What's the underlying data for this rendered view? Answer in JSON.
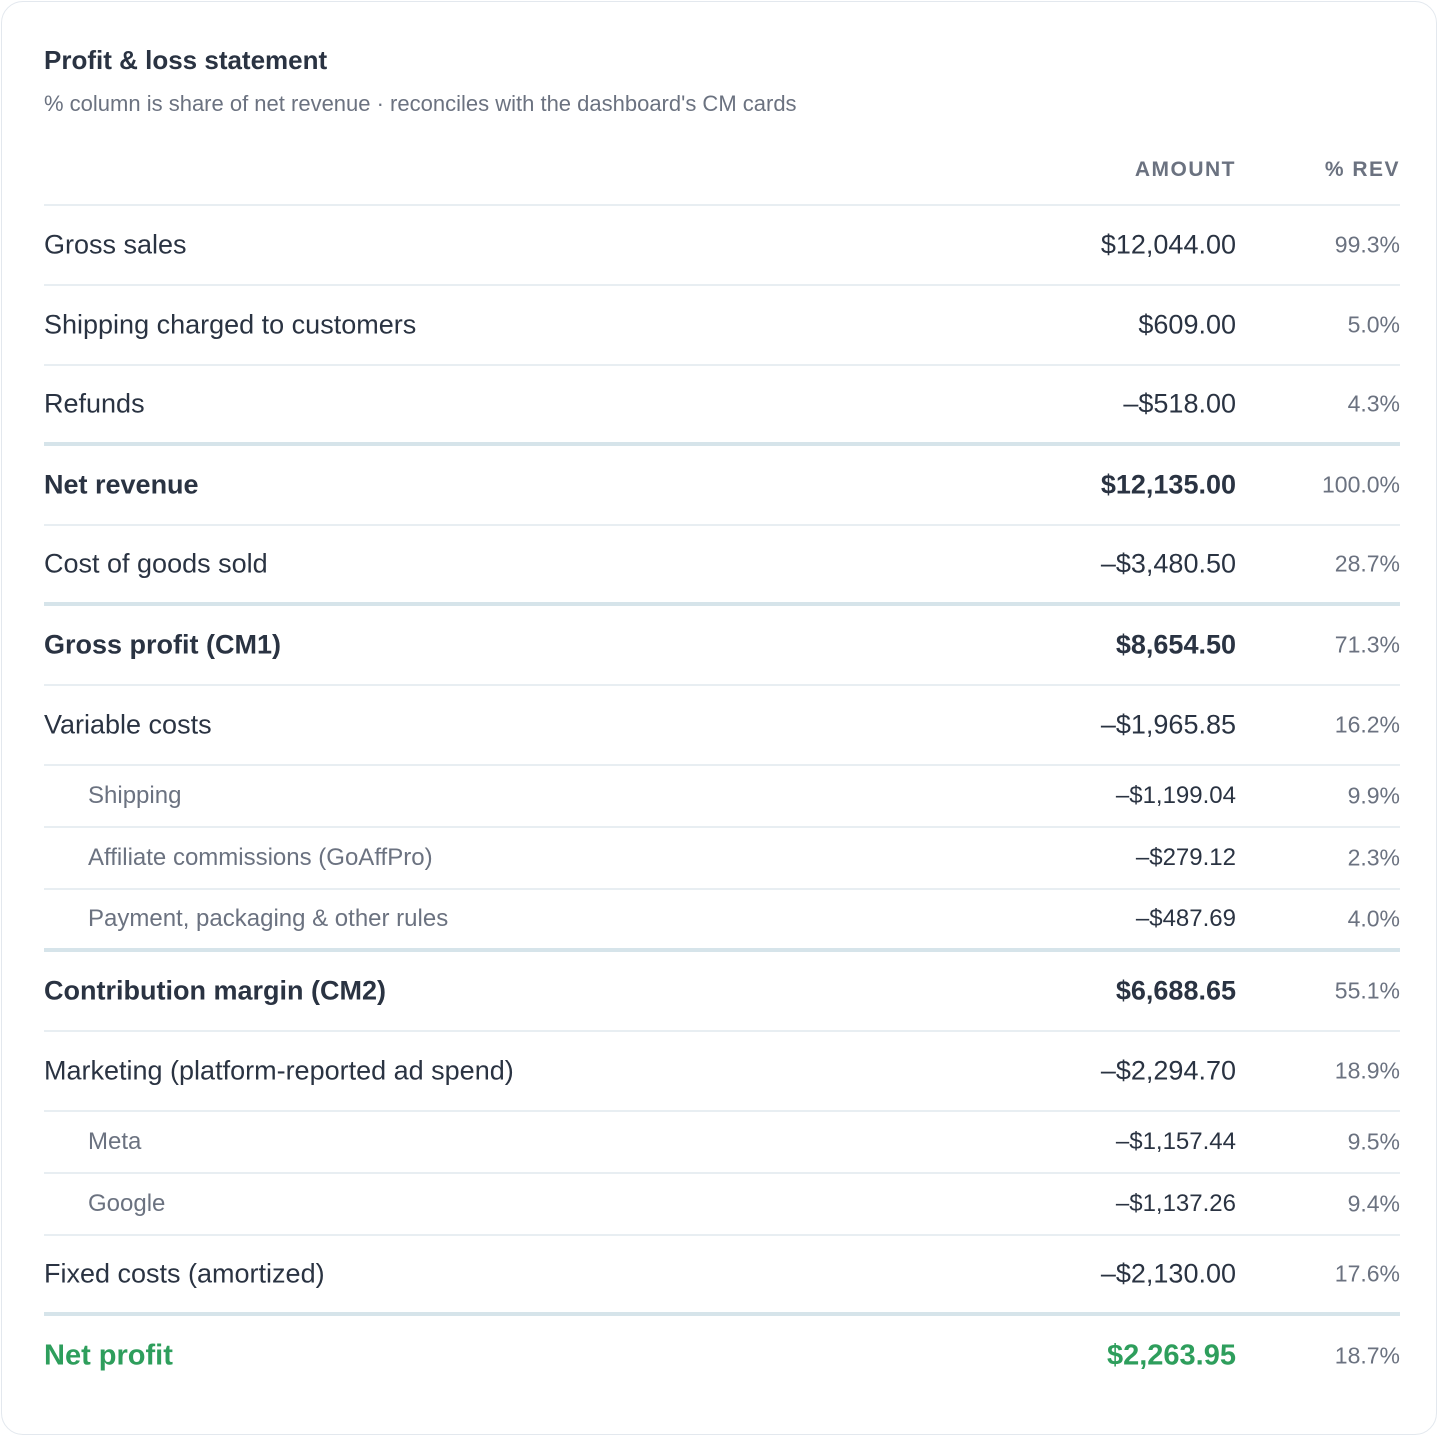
{
  "card": {
    "title": "Profit & loss statement",
    "subtitle": "% column is share of net revenue · reconciles with the dashboard's CM cards"
  },
  "table": {
    "headers": {
      "amount": "AMOUNT",
      "pct": "% REV"
    },
    "rows": [
      {
        "label": "Gross sales",
        "amount": "$12,044.00",
        "pct": "99.3%"
      },
      {
        "label": "Shipping charged to customers",
        "amount": "$609.00",
        "pct": "5.0%"
      },
      {
        "label": "Refunds",
        "amount": "–$518.00",
        "pct": "4.3%"
      },
      {
        "label": "Net revenue",
        "amount": "$12,135.00",
        "pct": "100.0%"
      },
      {
        "label": "Cost of goods sold",
        "amount": "–$3,480.50",
        "pct": "28.7%"
      },
      {
        "label": "Gross profit (CM1)",
        "amount": "$8,654.50",
        "pct": "71.3%"
      },
      {
        "label": "Variable costs",
        "amount": "–$1,965.85",
        "pct": "16.2%"
      },
      {
        "label": "Shipping",
        "amount": "–$1,199.04",
        "pct": "9.9%"
      },
      {
        "label": "Affiliate commissions (GoAffPro)",
        "amount": "–$279.12",
        "pct": "2.3%"
      },
      {
        "label": "Payment, packaging & other rules",
        "amount": "–$487.69",
        "pct": "4.0%"
      },
      {
        "label": "Contribution margin (CM2)",
        "amount": "$6,688.65",
        "pct": "55.1%"
      },
      {
        "label": "Marketing (platform-reported ad spend)",
        "amount": "–$2,294.70",
        "pct": "18.9%"
      },
      {
        "label": "Meta",
        "amount": "–$1,157.44",
        "pct": "9.5%"
      },
      {
        "label": "Google",
        "amount": "–$1,137.26",
        "pct": "9.4%"
      },
      {
        "label": "Fixed costs (amortized)",
        "amount": "–$2,130.00",
        "pct": "17.6%"
      },
      {
        "label": "Net profit",
        "amount": "$2,263.95",
        "pct": "18.7%"
      }
    ]
  },
  "colors": {
    "text": "#2a3342",
    "muted": "#6b7280",
    "positive": "#2e9e5c",
    "divider": "#e8eef2",
    "subtotal_rule": "#d6e4ea"
  }
}
